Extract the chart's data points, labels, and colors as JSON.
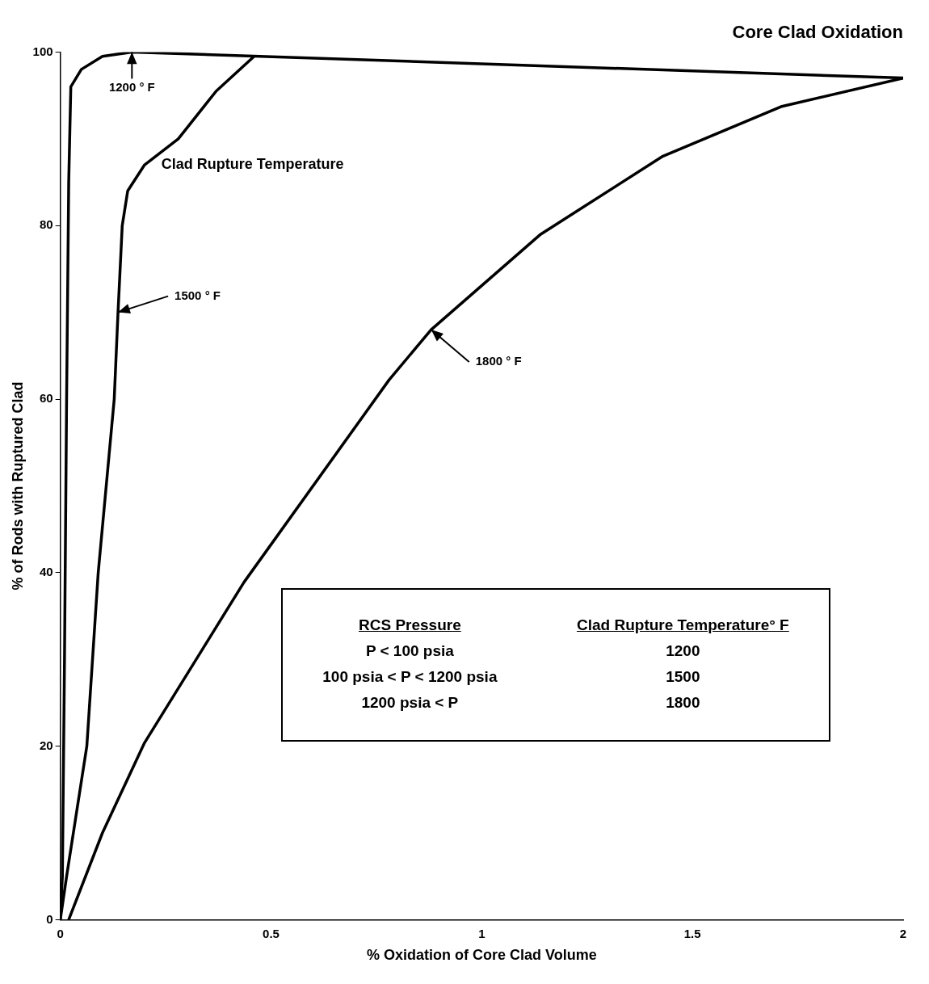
{
  "chart_data": {
    "type": "line",
    "title": "Core Clad Oxidation",
    "xlabel": "% Oxidation of Core Clad Volume",
    "ylabel": "% of Rods with Ruptured Clad",
    "xlim": [
      0,
      2
    ],
    "xticks": [
      0,
      0.5,
      1,
      1.5,
      2
    ],
    "ylim": [
      0,
      100
    ],
    "yticks": [
      0,
      20,
      40,
      60,
      80,
      100
    ],
    "grid": false,
    "legend": false,
    "marker": "none",
    "line_style": "solid",
    "series": [
      {
        "color": "#000000",
        "x": [
          0,
          0.005,
          0.01,
          0.015,
          0.02,
          0.025,
          0.05,
          0.1,
          0.17,
          2
        ],
        "values": [
          0,
          5,
          30,
          60,
          85,
          96,
          98,
          99.5,
          100,
          97
        ]
      },
      {
        "color": "#000000",
        "x": [
          0,
          0.015,
          0.063,
          0.09,
          0.128,
          0.137,
          0.147,
          0.16,
          0.2,
          0.28,
          0.37,
          0.46
        ],
        "values": [
          0,
          5,
          20,
          40,
          60,
          70,
          80,
          84,
          87,
          90,
          95.5,
          99.5
        ]
      },
      {
        "color": "#000000",
        "x": [
          0.02,
          0.1,
          0.2,
          0.436,
          0.78,
          0.88,
          1.14,
          1.43,
          1.71,
          2
        ],
        "values": [
          0,
          10,
          20.4,
          38.9,
          62.2,
          68,
          79,
          88,
          93.7,
          97
        ]
      }
    ],
    "annotations": [
      {
        "text": "1200 ° F",
        "x": 0.17,
        "y": 100
      },
      {
        "text": "1500 ° F",
        "x": 0.137,
        "y": 70
      },
      {
        "text": "1800 ° F",
        "x": 0.88,
        "y": 68
      },
      "Clad Rupture Temperature",
      "RCS Pressure",
      "P < 100 psia",
      "100 psia < P < 1200 psia",
      "1200 psia < P",
      "Clad Rupture Temperature° F",
      "1200",
      "1500",
      "1800"
    ]
  }
}
